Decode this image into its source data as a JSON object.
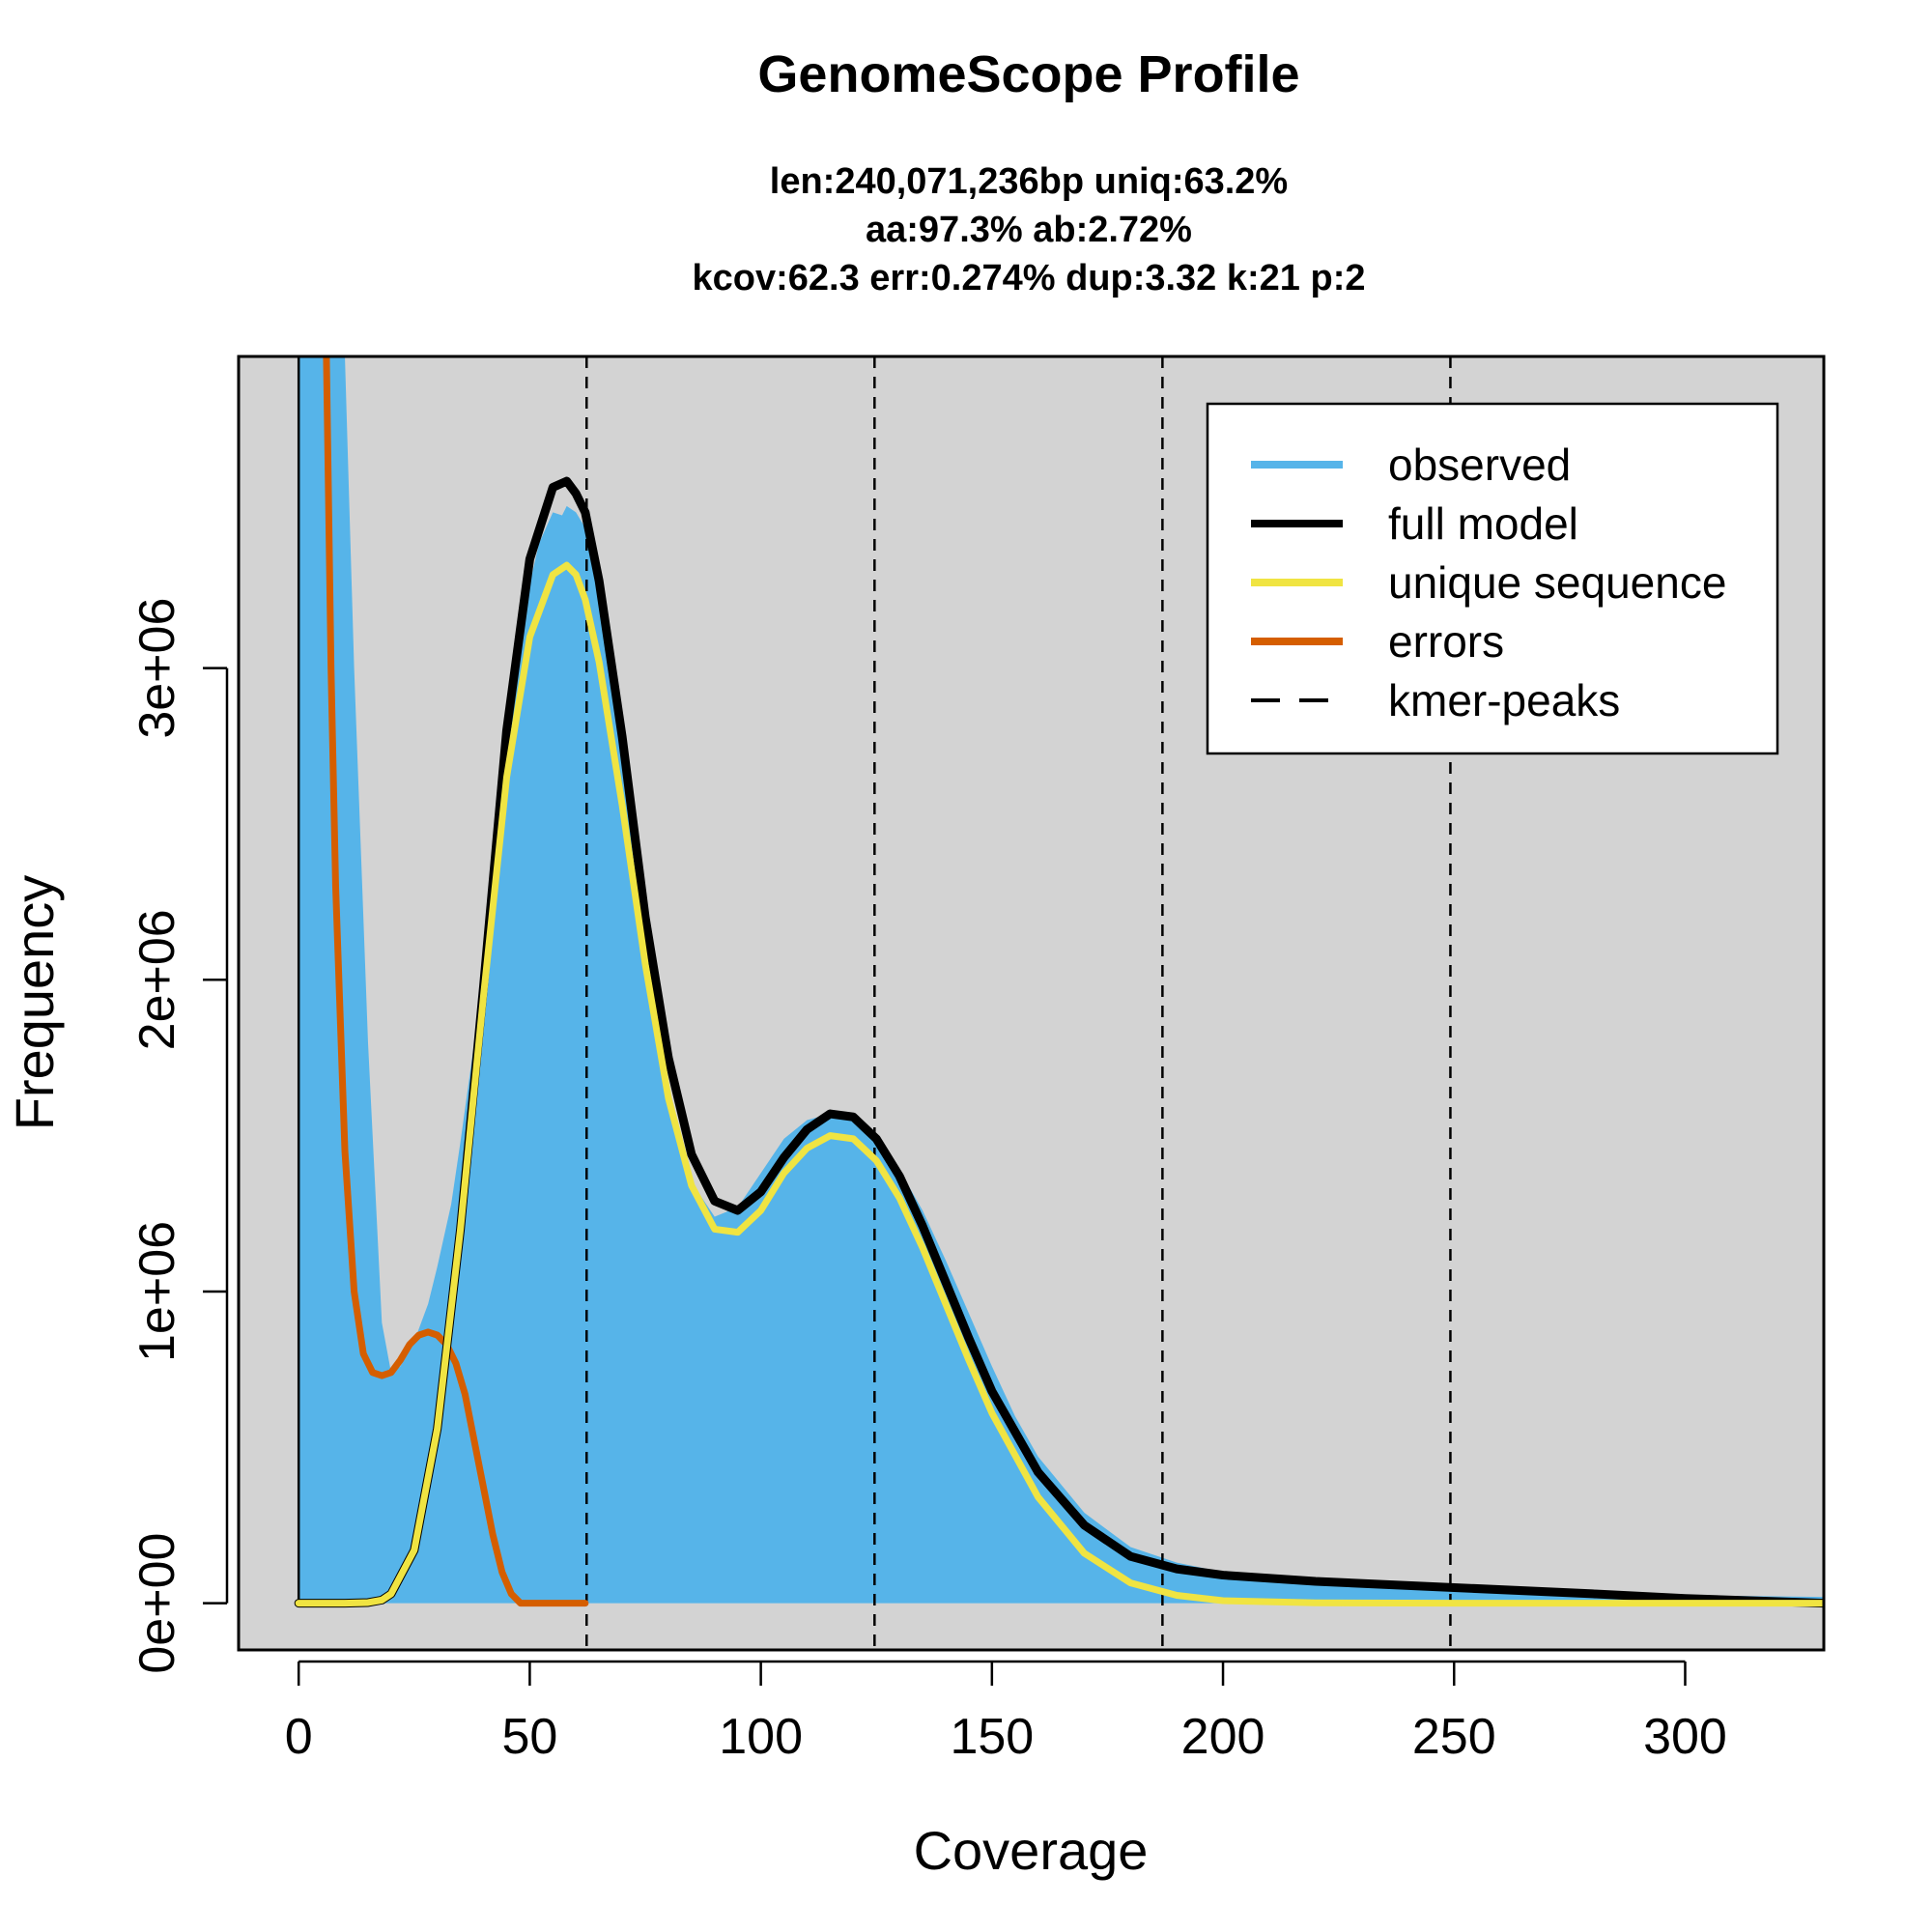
{
  "chart_data": {
    "type": "line",
    "title": "GenomeScope Profile",
    "subtitle_lines": [
      "len:240,071,236bp uniq:63.2%",
      "aa:97.3% ab:2.72%",
      "kcov:62.3 err:0.274%  dup:3.32  k:21 p:2"
    ],
    "xlabel": "Coverage",
    "ylabel": "Frequency",
    "xlim": [
      -13,
      330
    ],
    "ylim": [
      -150000,
      4000000
    ],
    "x_ticks": [
      0,
      50,
      100,
      150,
      200,
      250,
      300
    ],
    "x_tick_labels": [
      "0",
      "50",
      "100",
      "150",
      "200",
      "250",
      "300"
    ],
    "y_ticks": [
      0,
      1000000,
      2000000,
      3000000
    ],
    "y_tick_labels": [
      "0e+00",
      "1e+06",
      "2e+06",
      "3e+06"
    ],
    "kmer_peaks": [
      62.3,
      124.6,
      186.9,
      249.2
    ],
    "legend_position": "top-right",
    "legend": [
      {
        "label": "observed",
        "style": "solid",
        "color": "#56B4E9"
      },
      {
        "label": "full model",
        "style": "solid",
        "color": "#000000"
      },
      {
        "label": "unique sequence",
        "style": "solid",
        "color": "#F0E442"
      },
      {
        "label": "errors",
        "style": "solid",
        "color": "#D55E00"
      },
      {
        "label": "kmer-peaks",
        "style": "dashed",
        "color": "#000000"
      }
    ],
    "series": [
      {
        "name": "observed",
        "color": "#56B4E9",
        "x": [
          0,
          1,
          2,
          3,
          5,
          8,
          10,
          12,
          15,
          18,
          20,
          22,
          25,
          28,
          30,
          33,
          35,
          38,
          40,
          42,
          45,
          48,
          50,
          52,
          55,
          57,
          58,
          60,
          62,
          65,
          68,
          70,
          72,
          75,
          78,
          80,
          85,
          90,
          95,
          100,
          105,
          110,
          115,
          120,
          125,
          130,
          135,
          140,
          145,
          150,
          155,
          160,
          170,
          180,
          190,
          200,
          220,
          250,
          280,
          300,
          330
        ],
        "y": [
          4000000,
          4000000,
          4000000,
          4000000,
          4000000,
          4000000,
          4000000,
          3000000,
          1800000,
          900000,
          740000,
          760000,
          840000,
          960000,
          1080000,
          1280000,
          1480000,
          1800000,
          2060000,
          2330000,
          2700000,
          3060000,
          3270000,
          3400000,
          3500000,
          3490000,
          3520000,
          3500000,
          3450000,
          3300000,
          3020000,
          2800000,
          2550000,
          2150000,
          1800000,
          1600000,
          1350000,
          1240000,
          1270000,
          1380000,
          1490000,
          1550000,
          1570000,
          1560000,
          1500000,
          1390000,
          1260000,
          1100000,
          930000,
          760000,
          600000,
          470000,
          290000,
          180000,
          130000,
          100000,
          70000,
          42000,
          30000,
          25000,
          20000
        ]
      },
      {
        "name": "full model",
        "color": "#000000",
        "x": [
          0,
          10,
          15,
          18,
          20,
          25,
          30,
          35,
          40,
          45,
          50,
          55,
          58,
          60,
          62,
          65,
          70,
          75,
          80,
          85,
          90,
          95,
          100,
          105,
          110,
          115,
          120,
          125,
          130,
          135,
          140,
          145,
          150,
          160,
          170,
          180,
          190,
          200,
          220,
          250,
          280,
          300,
          330
        ],
        "y": [
          0,
          0,
          2000,
          10000,
          30000,
          170000,
          560000,
          1200000,
          1980000,
          2800000,
          3350000,
          3580000,
          3600000,
          3560000,
          3500000,
          3280000,
          2780000,
          2200000,
          1750000,
          1440000,
          1290000,
          1260000,
          1320000,
          1430000,
          1520000,
          1570000,
          1560000,
          1490000,
          1370000,
          1210000,
          1030000,
          850000,
          680000,
          420000,
          250000,
          150000,
          110000,
          90000,
          70000,
          50000,
          30000,
          15000,
          0
        ]
      },
      {
        "name": "unique sequence",
        "color": "#F0E442",
        "x": [
          0,
          10,
          15,
          18,
          20,
          25,
          30,
          35,
          40,
          45,
          50,
          55,
          58,
          60,
          62,
          65,
          70,
          75,
          80,
          85,
          90,
          95,
          100,
          105,
          110,
          115,
          120,
          125,
          130,
          135,
          140,
          145,
          150,
          160,
          170,
          180,
          190,
          200,
          220,
          250,
          280,
          300,
          330
        ],
        "y": [
          0,
          0,
          2000,
          10000,
          30000,
          170000,
          560000,
          1200000,
          1950000,
          2650000,
          3100000,
          3300000,
          3330000,
          3300000,
          3220000,
          3020000,
          2560000,
          2050000,
          1620000,
          1340000,
          1200000,
          1190000,
          1260000,
          1380000,
          1460000,
          1500000,
          1490000,
          1420000,
          1300000,
          1140000,
          960000,
          780000,
          610000,
          340000,
          160000,
          65000,
          25000,
          8000,
          1000,
          0,
          0,
          0,
          0
        ]
      },
      {
        "name": "errors",
        "color": "#D55E00",
        "x": [
          6,
          7,
          8,
          10,
          12,
          14,
          16,
          18,
          20,
          22,
          24,
          26,
          28,
          30,
          32,
          34,
          36,
          38,
          40,
          42,
          44,
          46,
          48,
          50,
          55,
          60,
          62
        ],
        "y": [
          4000000,
          3000000,
          2300000,
          1450000,
          1000000,
          800000,
          740000,
          730000,
          740000,
          780000,
          830000,
          860000,
          870000,
          860000,
          830000,
          770000,
          670000,
          520000,
          370000,
          220000,
          100000,
          30000,
          0,
          0,
          0,
          0,
          0
        ]
      }
    ]
  }
}
